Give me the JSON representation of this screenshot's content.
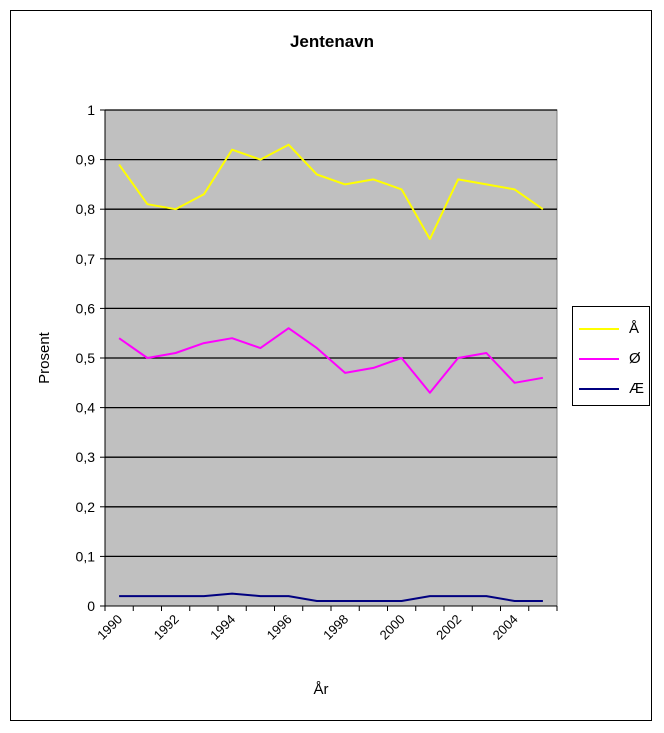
{
  "chart_data": {
    "type": "line",
    "title": "Jentenavn",
    "xlabel": "År",
    "ylabel": "Prosent",
    "ylim": [
      0,
      1
    ],
    "yticks": [
      "0",
      "0,1",
      "0,2",
      "0,3",
      "0,4",
      "0,5",
      "0,6",
      "0,7",
      "0,8",
      "0,9",
      "1"
    ],
    "xticks": [
      "1990",
      "1992",
      "1994",
      "1996",
      "1998",
      "2000",
      "2002",
      "2004"
    ],
    "x": [
      1990,
      1991,
      1992,
      1993,
      1994,
      1995,
      1996,
      1997,
      1998,
      1999,
      2000,
      2001,
      2002,
      2003,
      2004,
      2005
    ],
    "grid": true,
    "legend_position": "right",
    "plot_background": "#c0c0c0",
    "series": [
      {
        "name": "Å",
        "color": "#ffff00",
        "values": [
          0.89,
          0.81,
          0.8,
          0.83,
          0.92,
          0.9,
          0.93,
          0.87,
          0.85,
          0.86,
          0.84,
          0.74,
          0.86,
          0.85,
          0.84,
          0.8
        ]
      },
      {
        "name": "Ø",
        "color": "#ff00ff",
        "values": [
          0.54,
          0.5,
          0.51,
          0.53,
          0.54,
          0.52,
          0.56,
          0.52,
          0.47,
          0.48,
          0.5,
          0.43,
          0.5,
          0.51,
          0.45,
          0.46
        ]
      },
      {
        "name": "Æ",
        "color": "#000080",
        "values": [
          0.02,
          0.02,
          0.02,
          0.02,
          0.025,
          0.02,
          0.02,
          0.01,
          0.01,
          0.01,
          0.01,
          0.02,
          0.02,
          0.02,
          0.01,
          0.01
        ]
      }
    ]
  }
}
